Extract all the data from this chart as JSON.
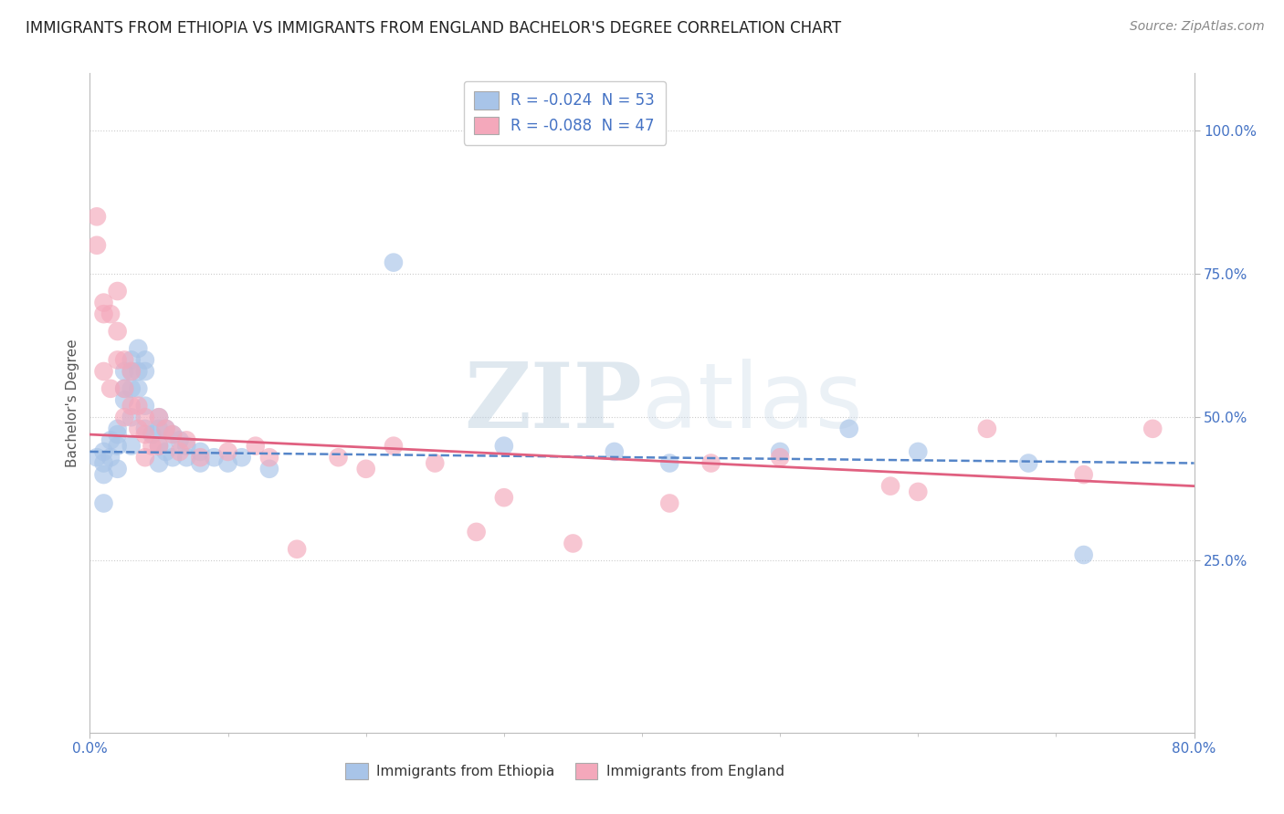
{
  "title": "IMMIGRANTS FROM ETHIOPIA VS IMMIGRANTS FROM ENGLAND BACHELOR'S DEGREE CORRELATION CHART",
  "source": "Source: ZipAtlas.com",
  "ylabel": "Bachelor's Degree",
  "legend_ethiopia": "R = -0.024  N = 53",
  "legend_england": "R = -0.088  N = 47",
  "color_ethiopia": "#a8c4e8",
  "color_england": "#f4a8bb",
  "color_trend_ethiopia": "#5585c8",
  "color_trend_england": "#e06080",
  "xlim": [
    0.0,
    0.8
  ],
  "ylim": [
    -0.05,
    1.1
  ],
  "yticks": [
    0.0,
    0.25,
    0.5,
    0.75,
    1.0
  ],
  "ytick_labels": [
    "",
    "25.0%",
    "50.0%",
    "75.0%",
    "100.0%"
  ],
  "background_color": "#ffffff",
  "grid_color": "#cccccc",
  "watermark_zip": "ZIP",
  "watermark_atlas": "atlas",
  "ethiopia_x": [
    0.005,
    0.01,
    0.01,
    0.01,
    0.01,
    0.015,
    0.015,
    0.02,
    0.02,
    0.02,
    0.02,
    0.025,
    0.025,
    0.025,
    0.03,
    0.03,
    0.03,
    0.03,
    0.03,
    0.035,
    0.035,
    0.035,
    0.04,
    0.04,
    0.04,
    0.04,
    0.045,
    0.05,
    0.05,
    0.05,
    0.05,
    0.055,
    0.055,
    0.06,
    0.06,
    0.065,
    0.07,
    0.07,
    0.08,
    0.08,
    0.09,
    0.1,
    0.11,
    0.13,
    0.22,
    0.3,
    0.38,
    0.42,
    0.5,
    0.55,
    0.6,
    0.68,
    0.72
  ],
  "ethiopia_y": [
    0.43,
    0.44,
    0.42,
    0.4,
    0.35,
    0.46,
    0.43,
    0.48,
    0.47,
    0.45,
    0.41,
    0.58,
    0.55,
    0.53,
    0.6,
    0.58,
    0.55,
    0.5,
    0.45,
    0.62,
    0.58,
    0.55,
    0.6,
    0.58,
    0.52,
    0.48,
    0.47,
    0.5,
    0.48,
    0.45,
    0.42,
    0.48,
    0.44,
    0.47,
    0.43,
    0.46,
    0.45,
    0.43,
    0.44,
    0.42,
    0.43,
    0.42,
    0.43,
    0.41,
    0.77,
    0.45,
    0.44,
    0.42,
    0.44,
    0.48,
    0.44,
    0.42,
    0.26
  ],
  "england_x": [
    0.005,
    0.005,
    0.01,
    0.01,
    0.01,
    0.015,
    0.015,
    0.02,
    0.02,
    0.02,
    0.025,
    0.025,
    0.025,
    0.03,
    0.03,
    0.035,
    0.035,
    0.04,
    0.04,
    0.04,
    0.045,
    0.05,
    0.05,
    0.055,
    0.06,
    0.065,
    0.07,
    0.08,
    0.1,
    0.12,
    0.13,
    0.15,
    0.18,
    0.2,
    0.22,
    0.25,
    0.28,
    0.3,
    0.35,
    0.42,
    0.45,
    0.5,
    0.58,
    0.6,
    0.65,
    0.72,
    0.77
  ],
  "england_y": [
    0.85,
    0.8,
    0.7,
    0.68,
    0.58,
    0.68,
    0.55,
    0.72,
    0.65,
    0.6,
    0.6,
    0.55,
    0.5,
    0.58,
    0.52,
    0.52,
    0.48,
    0.5,
    0.47,
    0.43,
    0.45,
    0.5,
    0.45,
    0.48,
    0.47,
    0.44,
    0.46,
    0.43,
    0.44,
    0.45,
    0.43,
    0.27,
    0.43,
    0.41,
    0.45,
    0.42,
    0.3,
    0.36,
    0.28,
    0.35,
    0.42,
    0.43,
    0.38,
    0.37,
    0.48,
    0.4,
    0.48
  ],
  "trend_ethiopia_start": 0.44,
  "trend_ethiopia_end": 0.42,
  "trend_england_start": 0.47,
  "trend_england_end": 0.38
}
